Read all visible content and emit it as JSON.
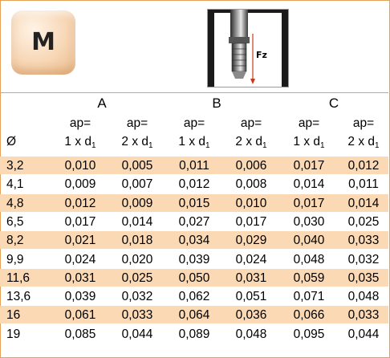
{
  "header": {
    "badge_letter": "M",
    "force_label": "Fz"
  },
  "groups": [
    "A",
    "B",
    "C"
  ],
  "column_header": {
    "diameter_symbol": "Ø",
    "line1": "ap=",
    "line2_prefix_1": "1 x d",
    "line2_prefix_2": "2 x d",
    "subscript": "1"
  },
  "rows": [
    {
      "d": "3,2",
      "v": [
        "0,010",
        "0,005",
        "0,011",
        "0,006",
        "0,017",
        "0,012"
      ]
    },
    {
      "d": "4,1",
      "v": [
        "0,009",
        "0,007",
        "0,012",
        "0,008",
        "0,014",
        "0,011"
      ]
    },
    {
      "d": "4,8",
      "v": [
        "0,012",
        "0,009",
        "0,015",
        "0,010",
        "0,017",
        "0,014"
      ]
    },
    {
      "d": "6,5",
      "v": [
        "0,017",
        "0,014",
        "0,027",
        "0,017",
        "0,030",
        "0,025"
      ]
    },
    {
      "d": "8,2",
      "v": [
        "0,021",
        "0,018",
        "0,034",
        "0,029",
        "0,040",
        "0,033"
      ]
    },
    {
      "d": "9,9",
      "v": [
        "0,024",
        "0,020",
        "0,039",
        "0,024",
        "0,048",
        "0,032"
      ]
    },
    {
      "d": "11,6",
      "v": [
        "0,031",
        "0,025",
        "0,050",
        "0,031",
        "0,059",
        "0,035"
      ]
    },
    {
      "d": "13,6",
      "v": [
        "0,039",
        "0,032",
        "0,062",
        "0,051",
        "0,071",
        "0,048"
      ]
    },
    {
      "d": "16",
      "v": [
        "0,061",
        "0,033",
        "0,064",
        "0,036",
        "0,066",
        "0,033"
      ]
    },
    {
      "d": "19",
      "v": [
        "0,085",
        "0,044",
        "0,089",
        "0,048",
        "0,095",
        "0,044"
      ]
    }
  ],
  "colors": {
    "row_shade": "#fbd9b5",
    "border": "#e5a05a"
  }
}
